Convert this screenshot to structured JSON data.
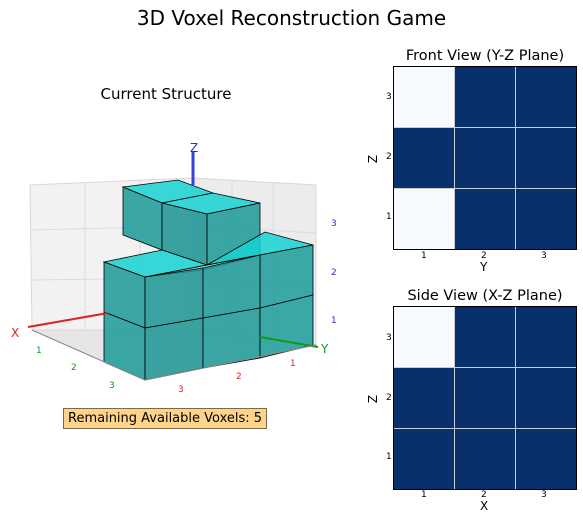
{
  "title": "3D Voxel Reconstruction Game",
  "structure_panel": {
    "title": "Current Structure",
    "axes": {
      "x": "X",
      "y": "Y",
      "z": "Z"
    },
    "x_ticks": [
      "1",
      "2",
      "3"
    ],
    "y_ticks": [
      "1",
      "2",
      "3"
    ],
    "z_ticks": [
      "1",
      "2",
      "3"
    ],
    "voxel_color": "#17c9c9"
  },
  "front_view": {
    "title": "Front View (Y-Z Plane)",
    "xlabel": "Y",
    "ylabel": "Z",
    "x_ticks": [
      "1",
      "2",
      "3"
    ],
    "y_ticks": [
      "3",
      "2",
      "1"
    ],
    "grid_rows_top_to_bottom": [
      [
        0,
        1,
        1
      ],
      [
        1,
        1,
        1
      ],
      [
        0,
        1,
        1
      ]
    ]
  },
  "side_view": {
    "title": "Side View (X-Z Plane)",
    "xlabel": "X",
    "ylabel": "Z",
    "x_ticks": [
      "1",
      "2",
      "3"
    ],
    "y_ticks": [
      "3",
      "2",
      "1"
    ],
    "grid_rows_top_to_bottom": [
      [
        0,
        1,
        1
      ],
      [
        1,
        1,
        1
      ],
      [
        1,
        1,
        1
      ]
    ]
  },
  "colors": {
    "filled": "#08306b",
    "empty": "#f7fbff"
  },
  "remaining": {
    "label": "Remaining Available Voxels: 5"
  }
}
